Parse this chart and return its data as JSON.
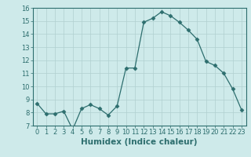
{
  "x": [
    0,
    1,
    2,
    3,
    4,
    5,
    6,
    7,
    8,
    9,
    10,
    11,
    12,
    13,
    14,
    15,
    16,
    17,
    18,
    19,
    20,
    21,
    22,
    23
  ],
  "y": [
    8.7,
    7.9,
    7.9,
    8.1,
    6.7,
    8.3,
    8.6,
    8.3,
    7.8,
    8.5,
    11.4,
    11.4,
    14.9,
    15.2,
    15.7,
    15.4,
    14.9,
    14.3,
    13.6,
    11.9,
    11.6,
    11.0,
    9.8,
    8.2
  ],
  "line_color": "#2d6e6e",
  "marker": "D",
  "marker_size": 2.5,
  "bg_color": "#ceeaea",
  "grid_color": "#b0d0d0",
  "xlabel": "Humidex (Indice chaleur)",
  "xlim": [
    -0.5,
    23.5
  ],
  "ylim": [
    7,
    16
  ],
  "yticks": [
    7,
    8,
    9,
    10,
    11,
    12,
    13,
    14,
    15,
    16
  ],
  "xticks": [
    0,
    1,
    2,
    3,
    4,
    5,
    6,
    7,
    8,
    9,
    10,
    11,
    12,
    13,
    14,
    15,
    16,
    17,
    18,
    19,
    20,
    21,
    22,
    23
  ],
  "tick_color": "#2d6e6e",
  "label_fontsize": 6,
  "xlabel_fontsize": 7.5,
  "axis_color": "#2d6e6e"
}
